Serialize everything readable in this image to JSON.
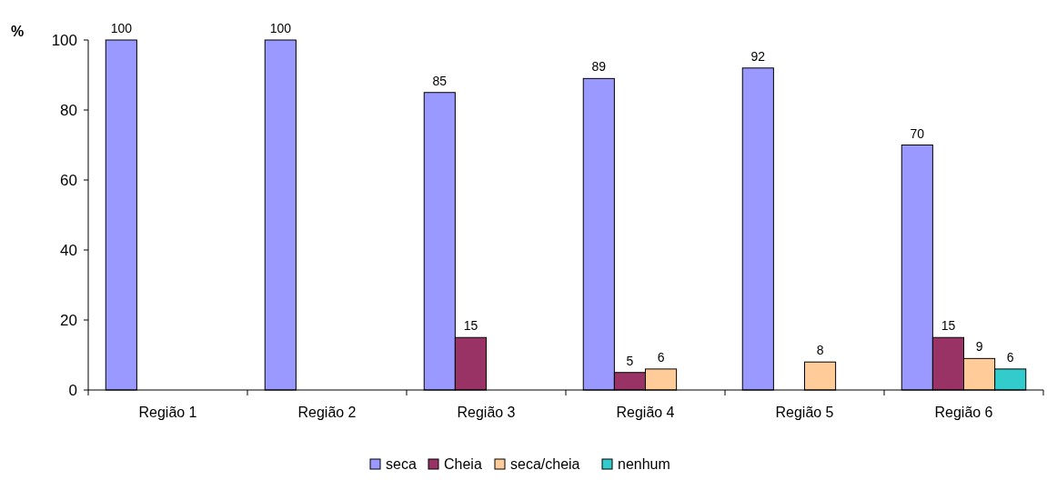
{
  "chart_data": {
    "type": "bar",
    "ylabel": "%",
    "categories": [
      "Região 1",
      "Região 2",
      "Região 3",
      "Região 4",
      "Região 5",
      "Região 6"
    ],
    "series": [
      {
        "name": "seca",
        "color": "#9999ff",
        "values": [
          100,
          100,
          85,
          89,
          92,
          70
        ]
      },
      {
        "name": "Cheia",
        "color": "#993366",
        "values": [
          null,
          null,
          15,
          5,
          null,
          15
        ]
      },
      {
        "name": "seca/cheia",
        "color": "#ffcc99",
        "values": [
          null,
          null,
          null,
          6,
          8,
          9
        ]
      },
      {
        "name": "nenhum",
        "color": "#33cccc",
        "values": [
          null,
          null,
          null,
          null,
          null,
          6
        ]
      }
    ],
    "ylim": [
      0,
      100
    ],
    "yticks": [
      0,
      20,
      40,
      60,
      80,
      100
    ],
    "data_labels": true,
    "legend": "bottom",
    "grid": false
  }
}
